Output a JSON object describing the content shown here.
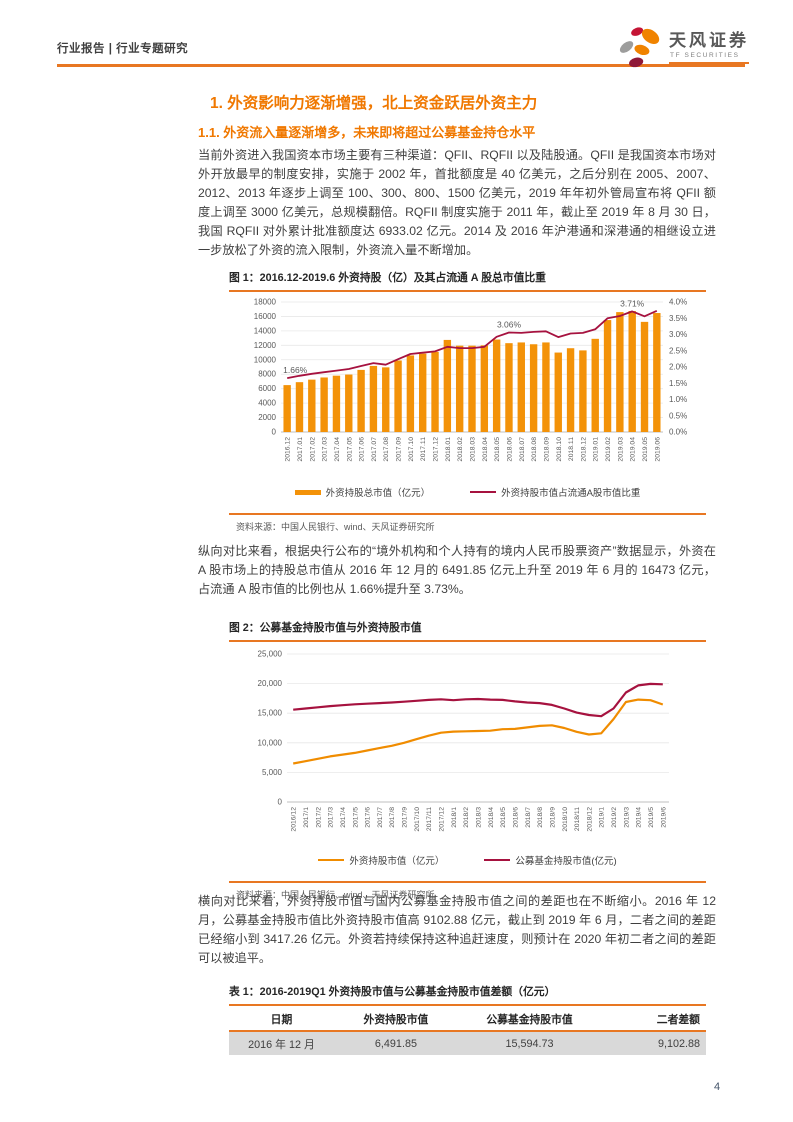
{
  "page": {
    "number": "4"
  },
  "header": {
    "left": "行业报告 | 行业专题研究",
    "logo_name": "天风证券",
    "logo_sub": "TF SECURITIES"
  },
  "headings": {
    "h1": "1. 外资影响力逐渐增强，北上资金跃居外资主力",
    "h2": "1.1. 外资流入量逐渐增多，未来即将超过公募基金持仓水平"
  },
  "paragraphs": {
    "p1": "当前外资进入我国资本市场主要有三种渠道：QFII、RQFII 以及陆股通。QFII 是我国资本市场对外开放最早的制度安排，实施于 2002 年，首批额度是 40 亿美元，之后分别在 2005、2007、2012、2013 年逐步上调至 100、300、800、1500 亿美元，2019 年年初外管局宣布将 QFII 额度上调至 3000 亿美元，总规模翻倍。RQFII 制度实施于 2011 年，截止至 2019 年 8 月 30 日，我国 RQFII 对外累计批准额度达 6933.02 亿元。2014 及 2016 年沪港通和深港通的相继设立进一步放松了外资的流入限制，外资流入量不断增加。",
    "p2": "纵向对比来看，根据央行公布的“境外机构和个人持有的境内人民币股票资产”数据显示，外资在 A 股市场上的持股总市值从 2016 年 12 月的 6491.85 亿元上升至 2019 年 6 月的 16473 亿元，占流通 A 股市值的比例也从 1.66%提升至 3.73%。",
    "p3": "横向对比来看，外资持股市值与国内公募基金持股市值之间的差距也在不断缩小。2016 年 12 月，公募基金持股市值比外资持股市值高 9102.88 亿元，截止到 2019 年 6 月，二者之间的差距已经缩小到 3417.26 亿元。外资若持续保持这种追赶速度，则预计在 2020 年初二者之间的差距可以被追平。"
  },
  "figure1": {
    "title": "图 1：2016.12-2019.6 外资持股（亿）及其占流通 A 股总市值比重",
    "legend": [
      "外资持股总市值（亿元）",
      "外资持股市值占流通A股市值比重"
    ],
    "source": "资料来源：中国人民银行、wind、天风证券研究所"
  },
  "figure2": {
    "title": "图 2：公募基金持股市值与外资持股市值",
    "legend": [
      "外资持股市值（亿元）",
      "公募基金持股市值(亿元)"
    ],
    "source": "资料来源：中国人民银行、wind、天风证券研究所"
  },
  "table1": {
    "title": "表 1：2016-2019Q1 外资持股市值与公募基金持股市值差额（亿元）",
    "headers": [
      "日期",
      "外资持股市值",
      "公募基金持股市值",
      "二者差额"
    ],
    "rows": [
      [
        "2016 年 12 月",
        "6,491.85",
        "15,594.73",
        "9,102.88"
      ]
    ]
  },
  "colors": {
    "accent": "#E87722",
    "heading": "#F07800",
    "bar": "#F39208",
    "bar_line": "#F08C00",
    "crimson": "#A6123F",
    "row_bg": "#D9D9D9",
    "body_text": "#3F3F3F",
    "source_text": "#595959",
    "page_number": "#44546A"
  },
  "chart_data": [
    {
      "type": "bar",
      "title": "图 1：2016.12-2019.6 外资持股（亿）及其占流通 A 股总市值比重",
      "categories": [
        "2016.12",
        "2017.01",
        "2017.02",
        "2017.03",
        "2017.04",
        "2017.05",
        "2017.06",
        "2017.07",
        "2017.08",
        "2017.09",
        "2017.10",
        "2017.11",
        "2017.12",
        "2018.01",
        "2018.02",
        "2018.03",
        "2018.04",
        "2018.05",
        "2018.06",
        "2018.07",
        "2018.08",
        "2018.09",
        "2018.10",
        "2018.11",
        "2018.12",
        "2019.01",
        "2019.02",
        "2019.03",
        "2019.04",
        "2019.05",
        "2019.06"
      ],
      "series": [
        {
          "name": "外资持股总市值（亿元）",
          "type": "bar",
          "axis": "left",
          "values": [
            6492,
            6900,
            7250,
            7550,
            7800,
            7950,
            8600,
            9150,
            8950,
            9900,
            10600,
            10850,
            11100,
            12750,
            11950,
            11950,
            12000,
            12800,
            12300,
            12400,
            12150,
            12400,
            11000,
            11600,
            11300,
            12900,
            15500,
            16600,
            16750,
            15250,
            16473
          ]
        },
        {
          "name": "外资持股市值占流通A股市值比重",
          "type": "line",
          "axis": "right",
          "values": [
            1.66,
            1.73,
            1.79,
            1.84,
            1.89,
            1.94,
            2.03,
            2.12,
            2.07,
            2.24,
            2.4,
            2.44,
            2.48,
            2.62,
            2.58,
            2.58,
            2.62,
            2.93,
            3.06,
            3.05,
            3.08,
            3.1,
            2.92,
            3.03,
            3.05,
            3.16,
            3.5,
            3.57,
            3.71,
            3.56,
            3.73
          ]
        }
      ],
      "left_axis": {
        "min": 0,
        "max": 18000,
        "step": 2000
      },
      "right_axis": {
        "min": 0,
        "max": 4,
        "step": 0.5,
        "suffix": "%"
      },
      "annotations": [
        {
          "index": 0,
          "text": "1.66%",
          "dx": 8
        },
        {
          "index": 18,
          "text": "3.06%",
          "dx": 0
        },
        {
          "index": 28,
          "text": "3.71%",
          "dx": 0
        }
      ],
      "grid": true,
      "legend_position": "bottom"
    },
    {
      "type": "line",
      "title": "图 2：公募基金持股市值与外资持股市值",
      "categories": [
        "2016/12",
        "2017/1",
        "2017/2",
        "2017/3",
        "2017/4",
        "2017/5",
        "2017/6",
        "2017/7",
        "2017/8",
        "2017/9",
        "2017/10",
        "2017/11",
        "2017/12",
        "2018/1",
        "2018/2",
        "2018/3",
        "2018/4",
        "2018/5",
        "2018/6",
        "2018/7",
        "2018/8",
        "2018/9",
        "2018/10",
        "2018/11",
        "2018/12",
        "2019/1",
        "2019/2",
        "2019/3",
        "2019/4",
        "2019/5",
        "2019/6"
      ],
      "series": [
        {
          "name": "外资持股市值（亿元）",
          "values": [
            6500,
            6900,
            7300,
            7700,
            8000,
            8300,
            8700,
            9100,
            9500,
            10000,
            10600,
            11200,
            11700,
            11900,
            11950,
            12000,
            12050,
            12300,
            12350,
            12600,
            12850,
            12950,
            12500,
            11850,
            11400,
            11600,
            14000,
            16900,
            17300,
            17200,
            16473
          ]
        },
        {
          "name": "公募基金持股市值(亿元)",
          "values": [
            15595,
            15800,
            16000,
            16200,
            16350,
            16500,
            16600,
            16700,
            16800,
            16950,
            17100,
            17250,
            17350,
            17200,
            17350,
            17400,
            17300,
            17250,
            17000,
            16800,
            16700,
            16400,
            15800,
            15100,
            14700,
            14500,
            15800,
            18500,
            19700,
            19950,
            19890
          ]
        }
      ],
      "left_axis": {
        "min": 0,
        "max": 25000,
        "step": 5000
      },
      "grid": true,
      "legend_position": "bottom"
    }
  ]
}
